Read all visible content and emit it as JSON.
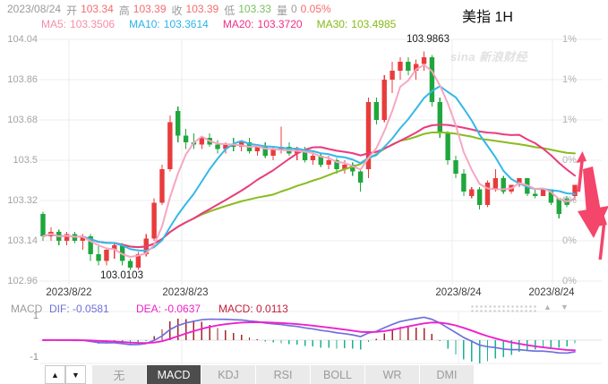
{
  "header": {
    "date": "2023/08/24",
    "open_label": "开",
    "open": "103.34",
    "high_label": "高",
    "high": "103.39",
    "close_label": "收",
    "close": "103.39",
    "low_label": "低",
    "low": "103.33",
    "volume_label": "量",
    "volume": "0",
    "change": "0.05%",
    "title": "美指 1H"
  },
  "ma_legend": {
    "ma5_label": "MA5:",
    "ma5": "103.3506",
    "ma10_label": "MA10:",
    "ma10": "103.3614",
    "ma20_label": "MA20:",
    "ma20": "103.3720",
    "ma30_label": "MA30:",
    "ma30": "103.4985"
  },
  "watermark": "sina 新浪财经",
  "axes": {
    "price": [
      "104.04",
      "103.86",
      "103.68",
      "103.5",
      "103.32",
      "103.14",
      "102.96"
    ],
    "percent": [
      "1%",
      "1%",
      "1%",
      "0%",
      "0%",
      "0%",
      "0%"
    ],
    "dates": [
      "2023/8/22",
      "2023/8/23",
      "2023/8/24",
      "2023/8/24"
    ]
  },
  "annotations": {
    "high": "103.9863",
    "low": "103.0103",
    "trend_arrows": "large pink down arrow flanked by two small up arrows"
  },
  "macd_panel": {
    "name": "MACD",
    "dif_label": "DIF:",
    "dif": "-0.0581",
    "dea_label": "DEA:",
    "dea": "-0.0637",
    "macd_label": "MACD:",
    "macd": "0.0113",
    "y_top": "1",
    "y_bottom": "-1"
  },
  "controls": {
    "pane_up": "▲",
    "pane_down": "▼",
    "scale_up": "▲",
    "scale_down": "▼"
  },
  "tabs": {
    "items": [
      "无",
      "MACD",
      "KDJ",
      "RSI",
      "BOLL",
      "WR",
      "DMI"
    ],
    "selected": "MACD"
  },
  "colors": {
    "candle_up": "#e83c3c",
    "candle_down": "#1fa63c",
    "ma5": "#f7a6c2",
    "ma10": "#35b8e8",
    "ma20": "#e93b7e",
    "ma30": "#8abb20",
    "dif": "#6f6fdd",
    "dea": "#ee22cc",
    "hist_pos": "#a52525",
    "hist_neg": "#18b295",
    "arrow": "#f4456b",
    "value_up": "#f56c6c",
    "value_down": "#77c060",
    "grid": "#ececec"
  },
  "chart_data": {
    "type": "candlestick",
    "symbol": "美指",
    "interval": "1H",
    "y_axis": {
      "min": 102.96,
      "max": 104.04,
      "tick": 0.18
    },
    "session_high": 103.9863,
    "session_low": 103.0103,
    "ma_periods": [
      5,
      10,
      20,
      30
    ],
    "macd_params": {
      "fast": 12,
      "slow": 26,
      "signal": 9
    },
    "ohlc": [
      [
        103.26,
        103.27,
        103.14,
        103.16
      ],
      [
        103.16,
        103.2,
        103.14,
        103.18
      ],
      [
        103.18,
        103.19,
        103.12,
        103.14
      ],
      [
        103.14,
        103.18,
        103.12,
        103.17
      ],
      [
        103.17,
        103.18,
        103.13,
        103.14
      ],
      [
        103.14,
        103.17,
        103.1,
        103.16
      ],
      [
        103.16,
        103.17,
        103.05,
        103.08
      ],
      [
        103.08,
        103.12,
        103.03,
        103.05
      ],
      [
        103.05,
        103.11,
        103.03,
        103.1
      ],
      [
        103.1,
        103.13,
        103.06,
        103.12
      ],
      [
        103.12,
        103.13,
        103.03,
        103.05
      ],
      [
        103.05,
        103.06,
        103.0103,
        103.02
      ],
      [
        103.02,
        103.09,
        103.01,
        103.08
      ],
      [
        103.08,
        103.17,
        103.07,
        103.15
      ],
      [
        103.15,
        103.33,
        103.14,
        103.31
      ],
      [
        103.31,
        103.48,
        103.3,
        103.46
      ],
      [
        103.46,
        103.7,
        103.45,
        103.67
      ],
      [
        103.72,
        103.74,
        103.58,
        103.61
      ],
      [
        103.61,
        103.64,
        103.55,
        103.58
      ],
      [
        103.58,
        103.62,
        103.55,
        103.57
      ],
      [
        103.57,
        103.61,
        103.55,
        103.6
      ],
      [
        103.6,
        103.62,
        103.56,
        103.57
      ],
      [
        103.57,
        103.59,
        103.53,
        103.55
      ],
      [
        103.55,
        103.58,
        103.53,
        103.57
      ],
      [
        103.57,
        103.6,
        103.54,
        103.56
      ],
      [
        103.56,
        103.59,
        103.54,
        103.58
      ],
      [
        103.58,
        103.6,
        103.53,
        103.54
      ],
      [
        103.54,
        103.57,
        103.52,
        103.56
      ],
      [
        103.56,
        103.58,
        103.51,
        103.52
      ],
      [
        103.52,
        103.56,
        103.5,
        103.55
      ],
      [
        103.55,
        103.65,
        103.53,
        103.56
      ],
      [
        103.56,
        103.58,
        103.52,
        103.53
      ],
      [
        103.53,
        103.56,
        103.5,
        103.55
      ],
      [
        103.55,
        103.56,
        103.49,
        103.5
      ],
      [
        103.5,
        103.54,
        103.48,
        103.52
      ],
      [
        103.52,
        103.53,
        103.47,
        103.48
      ],
      [
        103.48,
        103.52,
        103.46,
        103.5
      ],
      [
        103.5,
        103.51,
        103.44,
        103.46
      ],
      [
        103.46,
        103.5,
        103.44,
        103.48
      ],
      [
        103.48,
        103.49,
        103.43,
        103.45
      ],
      [
        103.45,
        103.46,
        103.36,
        103.4
      ],
      [
        103.46,
        103.78,
        103.42,
        103.76
      ],
      [
        103.76,
        103.78,
        103.66,
        103.68
      ],
      [
        103.68,
        103.88,
        103.67,
        103.86
      ],
      [
        103.86,
        103.94,
        103.8,
        103.9
      ],
      [
        103.9,
        103.96,
        103.86,
        103.94
      ],
      [
        103.94,
        103.96,
        103.88,
        103.9
      ],
      [
        103.9,
        103.95,
        103.86,
        103.93
      ],
      [
        103.93,
        103.9863,
        103.9,
        103.96
      ],
      [
        103.96,
        103.97,
        103.74,
        103.76
      ],
      [
        103.76,
        103.78,
        103.6,
        103.62
      ],
      [
        103.62,
        103.63,
        103.48,
        103.5
      ],
      [
        103.5,
        103.52,
        103.42,
        103.44
      ],
      [
        103.44,
        103.46,
        103.34,
        103.36
      ],
      [
        103.34,
        103.38,
        103.33,
        103.37
      ],
      [
        103.37,
        103.38,
        103.28,
        103.3
      ],
      [
        103.3,
        103.41,
        103.29,
        103.4
      ],
      [
        103.37,
        103.46,
        103.36,
        103.42
      ],
      [
        103.42,
        103.43,
        103.35,
        103.36
      ],
      [
        103.36,
        103.39,
        103.35,
        103.39
      ],
      [
        103.39,
        103.42,
        103.38,
        103.42
      ],
      [
        103.42,
        103.42,
        103.34,
        103.35
      ],
      [
        103.35,
        103.37,
        103.33,
        103.34
      ],
      [
        103.34,
        103.37,
        103.34,
        103.37
      ],
      [
        103.37,
        103.37,
        103.3,
        103.31
      ],
      [
        103.33,
        103.33,
        103.24,
        103.26
      ],
      [
        103.33,
        103.34,
        103.29,
        103.3
      ],
      [
        103.34,
        103.39,
        103.33,
        103.39
      ]
    ]
  }
}
